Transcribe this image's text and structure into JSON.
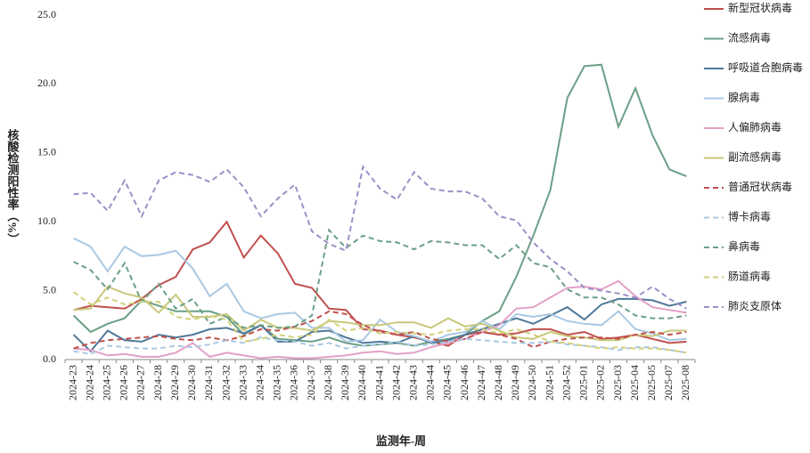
{
  "chart_data": {
    "type": "line",
    "y_label": "核酸检测阳性率（%）",
    "x_label": "监测年-周",
    "categories": [
      "2024-23",
      "2024-24",
      "2024-25",
      "2024-26",
      "2024-27",
      "2024-28",
      "2024-29",
      "2024-30",
      "2024-31",
      "2024-32",
      "2024-33",
      "2024-34",
      "2024-35",
      "2024-36",
      "2024-37",
      "2024-38",
      "2024-39",
      "2024-40",
      "2024-41",
      "2024-42",
      "2024-43",
      "2024-44",
      "2024-45",
      "2024-46",
      "2024-47",
      "2024-48",
      "2024-49",
      "2024-50",
      "2024-51",
      "2024-52",
      "2025-01",
      "2025-02",
      "2025-03",
      "2025-04",
      "2025-05",
      "2025-07",
      "2025-08"
    ],
    "ylim": [
      0,
      25
    ],
    "yticks": [
      {
        "value": 0,
        "label": "0.0"
      },
      {
        "value": 5,
        "label": "5.0"
      },
      {
        "value": 10,
        "label": "10.0"
      },
      {
        "value": 15,
        "label": "15.0"
      },
      {
        "value": 20,
        "label": "20.0"
      },
      {
        "value": 25,
        "label": "25.0"
      }
    ],
    "legend": "right",
    "series": [
      {
        "name": "新型冠状病毒",
        "color": "#c0504d",
        "dashed": false,
        "values": [
          3.6,
          3.9,
          3.8,
          3.7,
          4.4,
          5.4,
          6.0,
          8.0,
          8.5,
          10.0,
          7.4,
          9.0,
          7.7,
          5.5,
          5.2,
          3.7,
          3.6,
          2.2,
          2.1,
          1.8,
          1.6,
          1.3,
          1.0,
          1.8,
          2.0,
          1.8,
          1.9,
          2.2,
          2.2,
          1.8,
          2.0,
          1.5,
          1.6,
          1.8,
          1.5,
          1.2,
          1.3
        ]
      },
      {
        "name": "流感病毒",
        "color": "#6b9f85",
        "dashed": false,
        "values": [
          3.2,
          2.0,
          2.6,
          3.0,
          4.3,
          3.9,
          3.5,
          3.5,
          3.5,
          3.1,
          1.8,
          2.5,
          1.5,
          1.4,
          1.3,
          1.6,
          1.2,
          1.0,
          1.1,
          1.2,
          1.0,
          1.3,
          1.5,
          1.8,
          2.8,
          3.5,
          6.0,
          9.0,
          12.3,
          19.0,
          21.3,
          21.4,
          16.9,
          19.7,
          16.3,
          13.8,
          13.3
        ]
      },
      {
        "name": "呼吸道合胞病毒",
        "color": "#4f7898",
        "dashed": false,
        "values": [
          1.8,
          0.6,
          2.1,
          1.4,
          1.3,
          1.8,
          1.6,
          1.8,
          2.2,
          2.3,
          1.9,
          2.5,
          1.3,
          1.3,
          2.0,
          2.1,
          1.6,
          1.2,
          1.3,
          1.2,
          1.7,
          1.2,
          1.4,
          1.8,
          2.2,
          2.6,
          3.0,
          2.6,
          3.2,
          3.8,
          2.9,
          4.0,
          4.4,
          4.4,
          4.3,
          3.9,
          4.2
        ]
      },
      {
        "name": "腺病毒",
        "color": "#a9c8e3",
        "dashed": false,
        "values": [
          8.8,
          8.2,
          6.4,
          8.2,
          7.5,
          7.6,
          7.9,
          6.6,
          4.6,
          5.5,
          3.5,
          3.0,
          3.3,
          3.4,
          2.3,
          2.3,
          1.3,
          1.4,
          2.9,
          2.0,
          1.7,
          1.3,
          1.8,
          2.0,
          2.8,
          2.2,
          3.3,
          3.1,
          3.3,
          2.8,
          2.6,
          2.5,
          3.5,
          2.2,
          1.9,
          1.4,
          1.5
        ]
      },
      {
        "name": "人偏肺病毒",
        "color": "#e3a0c6",
        "dashed": false,
        "values": [
          0.8,
          0.7,
          0.3,
          0.4,
          0.2,
          0.2,
          0.5,
          1.2,
          0.2,
          0.5,
          0.3,
          0.1,
          0.2,
          0.1,
          0.1,
          0.2,
          0.3,
          0.5,
          0.6,
          0.4,
          0.5,
          0.9,
          1.2,
          1.5,
          2.0,
          2.5,
          3.7,
          3.8,
          4.5,
          5.2,
          5.3,
          5.1,
          5.7,
          4.6,
          3.8,
          3.6,
          3.4
        ]
      },
      {
        "name": "副流感病毒",
        "color": "#c9c77a",
        "dashed": false,
        "values": [
          3.6,
          3.7,
          5.3,
          4.8,
          4.5,
          3.4,
          4.7,
          3.1,
          3.1,
          3.3,
          2.1,
          2.9,
          2.3,
          2.3,
          2.1,
          2.8,
          2.7,
          2.5,
          2.5,
          2.7,
          2.7,
          2.3,
          3.0,
          2.4,
          2.6,
          2.1,
          1.6,
          1.5,
          2.0,
          1.7,
          1.6,
          1.4,
          1.4,
          1.8,
          1.7,
          2.1,
          2.1
        ]
      },
      {
        "name": "普通冠状病毒",
        "color": "#c0504d",
        "dashed": true,
        "values": [
          0.8,
          1.2,
          1.4,
          1.5,
          1.6,
          1.7,
          1.5,
          1.4,
          1.6,
          1.4,
          1.7,
          2.2,
          2.1,
          2.4,
          2.8,
          3.5,
          3.3,
          2.5,
          2.0,
          1.8,
          2.0,
          1.5,
          1.3,
          1.5,
          2.0,
          1.8,
          1.5,
          0.9,
          1.3,
          1.5,
          1.6,
          1.6,
          1.5,
          1.8,
          2.0,
          1.8,
          2.0
        ]
      },
      {
        "name": "博卡病毒",
        "color": "#a9c8e3",
        "dashed": true,
        "values": [
          0.6,
          0.4,
          1.0,
          0.9,
          0.8,
          0.8,
          1.0,
          0.9,
          1.1,
          1.4,
          1.2,
          1.6,
          1.4,
          1.3,
          1.0,
          1.2,
          0.8,
          1.0,
          1.1,
          1.3,
          1.0,
          1.1,
          1.3,
          1.5,
          1.4,
          1.3,
          1.2,
          1.2,
          1.3,
          1.1,
          1.0,
          0.9,
          0.7,
          0.9,
          0.9,
          0.7,
          0.5
        ]
      },
      {
        "name": "鼻病毒",
        "color": "#6b9f85",
        "dashed": true,
        "values": [
          7.1,
          6.5,
          5.1,
          7.0,
          4.2,
          5.5,
          3.7,
          4.4,
          2.6,
          3.1,
          2.3,
          2.5,
          2.3,
          2.4,
          3.2,
          9.4,
          8.1,
          9.0,
          8.6,
          8.5,
          8.0,
          8.6,
          8.5,
          8.3,
          8.3,
          7.3,
          8.3,
          7.0,
          6.7,
          5.1,
          4.5,
          4.5,
          4.0,
          3.2,
          3.0,
          3.0,
          3.2
        ]
      },
      {
        "name": "肠道病毒",
        "color": "#d3d17a",
        "dashed": true,
        "values": [
          4.9,
          4.0,
          4.5,
          4.0,
          4.2,
          4.2,
          3.1,
          2.9,
          3.2,
          2.9,
          1.3,
          1.5,
          1.8,
          1.6,
          1.8,
          2.9,
          2.1,
          2.3,
          1.9,
          2.0,
          1.9,
          1.8,
          2.1,
          2.2,
          2.2,
          1.9,
          2.2,
          1.8,
          1.3,
          1.2,
          1.0,
          0.8,
          0.9,
          0.8,
          0.8,
          0.7,
          0.5
        ]
      },
      {
        "name": "肺炎支原体",
        "color": "#9c90c6",
        "dashed": true,
        "values": [
          12.0,
          12.1,
          10.8,
          13.0,
          10.4,
          13.0,
          13.6,
          13.4,
          12.9,
          13.8,
          12.5,
          10.4,
          11.7,
          12.7,
          9.3,
          8.4,
          7.9,
          14.0,
          12.4,
          11.6,
          13.6,
          12.4,
          12.2,
          12.2,
          11.7,
          10.4,
          10.1,
          8.5,
          7.3,
          6.4,
          5.2,
          5.0,
          4.8,
          4.5,
          5.3,
          4.4,
          3.7
        ]
      }
    ]
  }
}
